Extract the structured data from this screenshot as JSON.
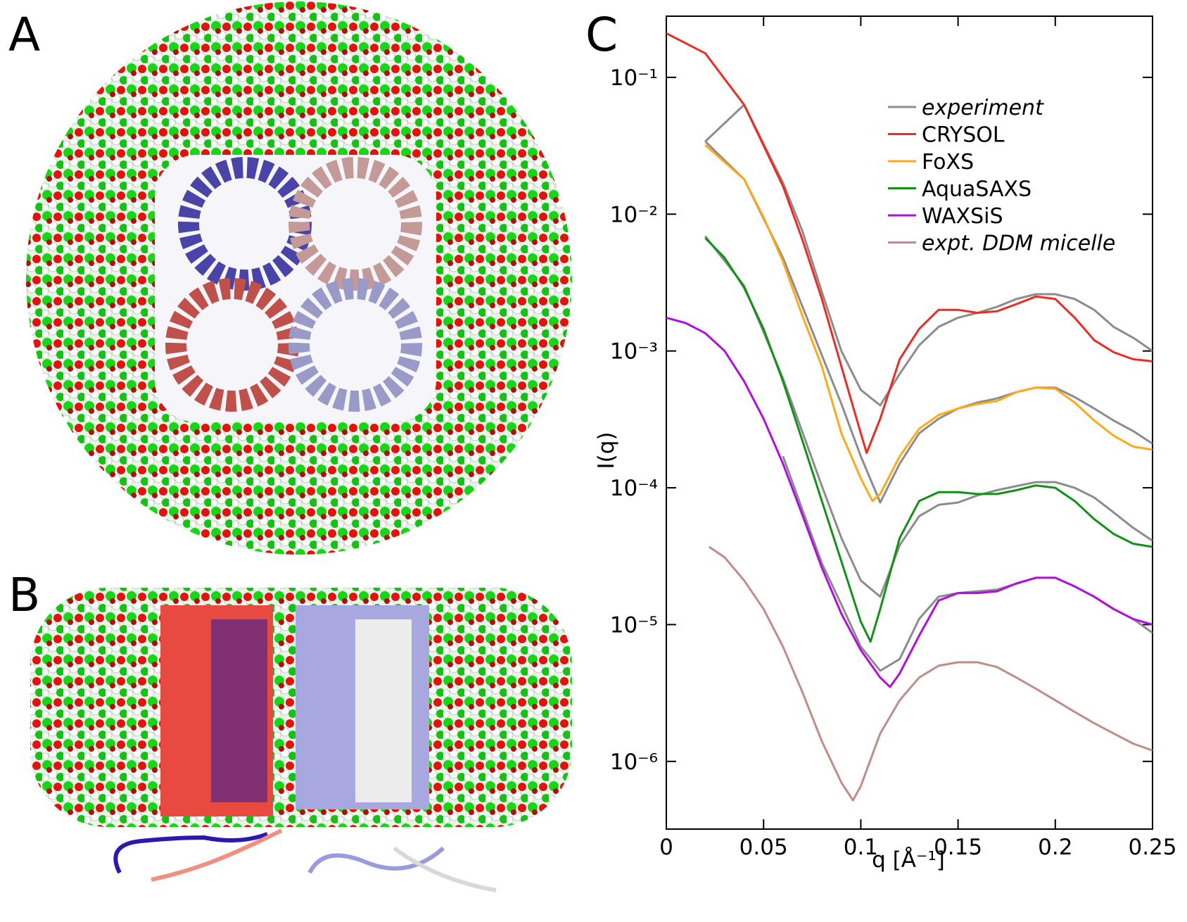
{
  "panels": [
    "A",
    "B"
  ],
  "chart_data": {
    "type": "line",
    "panel": "C",
    "xlabel": "q [Å⁻¹]",
    "ylabel": "I(q)",
    "xlim": [
      0,
      0.25
    ],
    "ylim": [
      3.2e-07,
      0.28
    ],
    "yscale": "log",
    "xticks": [
      0,
      0.05,
      0.1,
      0.15,
      0.2,
      0.25
    ],
    "yticks": [
      {
        "value": 0.1,
        "label": "10⁻¹"
      },
      {
        "value": 0.01,
        "label": "10⁻²"
      },
      {
        "value": 0.001,
        "label": "10⁻³"
      },
      {
        "value": 0.0001,
        "label": "10⁻⁴"
      },
      {
        "value": 1e-05,
        "label": "10⁻⁵"
      },
      {
        "value": 1e-06,
        "label": "10⁻⁶"
      }
    ],
    "series": [
      {
        "name": "experiment",
        "color": "#8c8c8c",
        "italic": true,
        "curves": [
          {
            "x": [
              0.02,
              0.04,
              0.06,
              0.07,
              0.08,
              0.09,
              0.1,
              0.11,
              0.12,
              0.13,
              0.14,
              0.15,
              0.16,
              0.17,
              0.18,
              0.19,
              0.2,
              0.21,
              0.22,
              0.23,
              0.24,
              0.25
            ],
            "values": [
              0.034,
              0.063,
              0.017,
              0.0075,
              0.0027,
              0.001,
              0.00052,
              0.0004,
              0.00068,
              0.0011,
              0.0015,
              0.00175,
              0.0019,
              0.0021,
              0.0024,
              0.0026,
              0.0026,
              0.0024,
              0.002,
              0.0015,
              0.00125,
              0.001
            ]
          },
          {
            "x": [
              0.02,
              0.04,
              0.06,
              0.08,
              0.09,
              0.1,
              0.11,
              0.12,
              0.13,
              0.14,
              0.15,
              0.16,
              0.17,
              0.18,
              0.19,
              0.2,
              0.21,
              0.22,
              0.23,
              0.24,
              0.25
            ],
            "values": [
              0.034,
              0.018,
              0.0048,
              0.00093,
              0.00041,
              0.00017,
              7.8e-05,
              0.00015,
              0.00025,
              0.00032,
              0.00038,
              0.00042,
              0.00045,
              0.0005,
              0.00054,
              0.00054,
              0.00046,
              0.00038,
              0.00031,
              0.00026,
              0.00021
            ]
          },
          {
            "x": [
              0.02,
              0.04,
              0.06,
              0.08,
              0.09,
              0.1,
              0.11,
              0.12,
              0.13,
              0.14,
              0.15,
              0.16,
              0.17,
              0.18,
              0.19,
              0.2,
              0.21,
              0.22,
              0.23,
              0.24,
              0.25
            ],
            "values": [
              0.0069,
              0.003,
              0.00063,
              0.000103,
              4.3e-05,
              2.1e-05,
              1.6e-05,
              3.8e-05,
              6.2e-05,
              7.5e-05,
              7.8e-05,
              8.8e-05,
              9.6e-05,
              0.000103,
              0.00011,
              0.00011,
              0.0001,
              8.5e-05,
              6.6e-05,
              5.1e-05,
              4.1e-05
            ]
          },
          {
            "x": [
              0.06,
              0.08,
              0.09,
              0.1,
              0.11,
              0.12,
              0.13,
              0.14,
              0.15,
              0.17,
              0.19,
              0.2,
              0.21,
              0.22,
              0.23,
              0.24,
              0.25
            ],
            "values": [
              0.00017,
              2.8e-05,
              1.4e-05,
              6.9e-06,
              4.6e-06,
              5.6e-06,
              1.1e-05,
              1.6e-05,
              1.7e-05,
              1.8e-05,
              2.2e-05,
              2.2e-05,
              1.9e-05,
              1.6e-05,
              1.3e-05,
              1.1e-05,
              8.7e-06
            ]
          }
        ]
      },
      {
        "name": "CRYSOL",
        "color": "#ee2a24",
        "x": [
          0,
          0.02,
          0.04,
          0.06,
          0.07,
          0.08,
          0.09,
          0.1,
          0.103,
          0.11,
          0.12,
          0.13,
          0.14,
          0.15,
          0.16,
          0.17,
          0.18,
          0.19,
          0.2,
          0.21,
          0.22,
          0.23,
          0.24,
          0.25
        ],
        "values": [
          0.21,
          0.15,
          0.063,
          0.016,
          0.0065,
          0.0024,
          0.00077,
          0.00025,
          0.00018,
          0.00032,
          0.00087,
          0.00145,
          0.002,
          0.002,
          0.0019,
          0.00195,
          0.0022,
          0.0025,
          0.0024,
          0.00175,
          0.0012,
          0.00098,
          0.00087,
          0.00084
        ]
      },
      {
        "name": "FoXS",
        "color": "#ffa91a",
        "x": [
          0.02,
          0.03,
          0.04,
          0.05,
          0.06,
          0.07,
          0.08,
          0.09,
          0.1,
          0.106,
          0.11,
          0.12,
          0.13,
          0.14,
          0.15,
          0.16,
          0.17,
          0.18,
          0.19,
          0.2,
          0.21,
          0.22,
          0.23,
          0.24,
          0.25
        ],
        "values": [
          0.032,
          0.024,
          0.018,
          0.0095,
          0.0045,
          0.0018,
          0.00077,
          0.00025,
          0.000117,
          8e-05,
          9e-05,
          0.00017,
          0.00027,
          0.00034,
          0.00038,
          0.00041,
          0.00043,
          0.0005,
          0.00054,
          0.00053,
          0.00042,
          0.00031,
          0.00024,
          0.0002,
          0.00019
        ]
      },
      {
        "name": "AquaSAXS",
        "color": "#129118",
        "x": [
          0.02,
          0.03,
          0.04,
          0.05,
          0.06,
          0.07,
          0.08,
          0.09,
          0.1,
          0.105,
          0.11,
          0.12,
          0.13,
          0.14,
          0.15,
          0.16,
          0.17,
          0.18,
          0.19,
          0.2,
          0.21,
          0.22,
          0.23,
          0.24,
          0.25
        ],
        "values": [
          0.0067,
          0.0048,
          0.0029,
          0.00145,
          0.0006,
          0.00022,
          8e-05,
          2.9e-05,
          1.05e-05,
          7.5e-06,
          1.3e-05,
          4.3e-05,
          8e-05,
          9.3e-05,
          9.3e-05,
          9e-05,
          9e-05,
          9.6e-05,
          0.000104,
          0.0001,
          8e-05,
          5.9e-05,
          4.6e-05,
          3.9e-05,
          3.7e-05
        ]
      },
      {
        "name": "WAXSiS",
        "color": "#b10ee0",
        "x": [
          0,
          0.01,
          0.02,
          0.03,
          0.04,
          0.05,
          0.06,
          0.07,
          0.08,
          0.09,
          0.1,
          0.11,
          0.115,
          0.12,
          0.13,
          0.14,
          0.15,
          0.16,
          0.17,
          0.18,
          0.19,
          0.2,
          0.21,
          0.22,
          0.23,
          0.24,
          0.25
        ],
        "values": [
          0.00175,
          0.0016,
          0.00135,
          0.001,
          0.0006,
          0.00032,
          0.00015,
          6.3e-05,
          2.6e-05,
          1.2e-05,
          6.5e-06,
          4.1e-06,
          3.5e-06,
          4.4e-06,
          8.3e-06,
          1.5e-05,
          1.7e-05,
          1.7e-05,
          1.75e-05,
          2e-05,
          2.2e-05,
          2.2e-05,
          1.9e-05,
          1.6e-05,
          1.3e-05,
          1.1e-05,
          1e-05
        ]
      },
      {
        "name": "expt. DDM micelle",
        "color": "#c08c8a",
        "italic": true,
        "x": [
          0.022,
          0.03,
          0.04,
          0.05,
          0.06,
          0.07,
          0.08,
          0.09,
          0.096,
          0.1,
          0.11,
          0.12,
          0.13,
          0.14,
          0.15,
          0.16,
          0.17,
          0.18,
          0.19,
          0.2,
          0.21,
          0.22,
          0.23,
          0.24,
          0.25
        ],
        "values": [
          3.7e-05,
          3.1e-05,
          2.1e-05,
          1.3e-05,
          6.9e-06,
          3.2e-06,
          1.4e-06,
          7e-07,
          5.2e-07,
          6.6e-07,
          1.6e-06,
          2.8e-06,
          4.1e-06,
          5e-06,
          5.3e-06,
          5.3e-06,
          4.9e-06,
          4.1e-06,
          3.4e-06,
          2.8e-06,
          2.3e-06,
          1.9e-06,
          1.6e-06,
          1.35e-06,
          1.2e-06
        ]
      }
    ]
  }
}
